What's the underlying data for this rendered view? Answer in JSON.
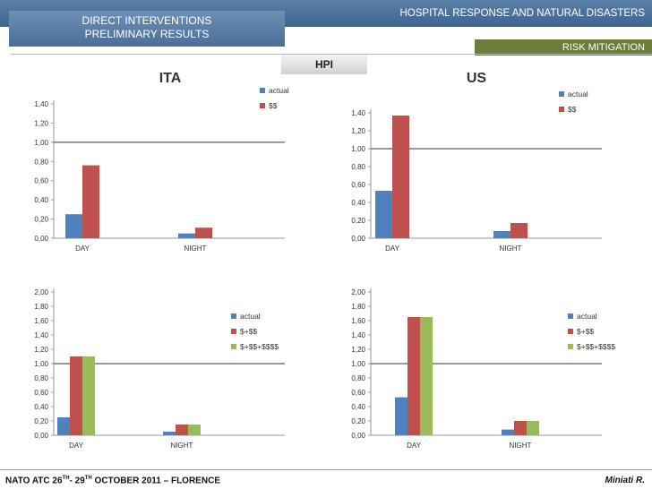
{
  "header": {
    "title": "HOSPITAL RESPONSE AND NATURAL DISASTERS",
    "section_line1": "DIRECT INTERVENTIONS",
    "section_line2": "PRELIMINARY RESULTS",
    "subtitle": "RISK MITIGATION",
    "hpi_label": "HPI"
  },
  "footer": {
    "event_prefix": "NATO ATC  26",
    "sup1": "TH",
    "mid": "- 29",
    "sup2": "TH",
    "event_suffix": " OCTOBER 2011 – FLORENCE",
    "author": "Miniati R."
  },
  "colors": {
    "actual": "#4f81bd",
    "ss": "#c0504d",
    "sss": "#9bbb59"
  },
  "chart_data": [
    {
      "type": "bar",
      "title": "ITA",
      "categories": [
        "DAY",
        "NIGHT"
      ],
      "series": [
        {
          "name": "actual",
          "values": [
            0.25,
            0.05
          ]
        },
        {
          "name": "$$",
          "values": [
            0.76,
            0.11
          ]
        }
      ],
      "ylim": [
        0,
        1.4
      ],
      "yticks": [
        0.0,
        0.2,
        0.4,
        0.6,
        0.8,
        1.0,
        1.2,
        1.4
      ],
      "ytick_labels": [
        "0,00",
        "0,20",
        "0,40",
        "0,60",
        "0,80",
        "1,00",
        "1,20",
        "1,40"
      ],
      "reference_line": 1.0
    },
    {
      "type": "bar",
      "title": "US",
      "categories": [
        "DAY",
        "NIGHT"
      ],
      "series": [
        {
          "name": "actual",
          "values": [
            0.53,
            0.08
          ]
        },
        {
          "name": "$$",
          "values": [
            1.37,
            0.17
          ]
        }
      ],
      "ylim": [
        0,
        1.4
      ],
      "yticks": [
        0.0,
        0.2,
        0.4,
        0.6,
        0.8,
        1.0,
        1.2,
        1.4
      ],
      "ytick_labels": [
        "0,00",
        "0,20",
        "0,40",
        "0,60",
        "0,80",
        "1,00",
        "1,20",
        "1,40"
      ],
      "reference_line": 1.0
    },
    {
      "type": "bar",
      "title": "",
      "categories": [
        "DAY",
        "NIGHT"
      ],
      "series": [
        {
          "name": "actual",
          "values": [
            0.25,
            0.05
          ]
        },
        {
          "name": "$+$$",
          "values": [
            1.1,
            0.15
          ]
        },
        {
          "name": "$+$$+$$$$",
          "values": [
            1.1,
            0.15
          ]
        }
      ],
      "ylim": [
        0,
        2.0
      ],
      "yticks": [
        0.0,
        0.2,
        0.4,
        0.6,
        0.8,
        1.0,
        1.2,
        1.4,
        1.6,
        1.8,
        2.0
      ],
      "ytick_labels": [
        "0,00",
        "0,20",
        "0,40",
        "0,60",
        "0,80",
        "1,00",
        "1,20",
        "1,40",
        "1,60",
        "1,80",
        "2,00"
      ],
      "reference_line": 1.0
    },
    {
      "type": "bar",
      "title": "",
      "categories": [
        "DAY",
        "NIGHT"
      ],
      "series": [
        {
          "name": "actual",
          "values": [
            0.53,
            0.08
          ]
        },
        {
          "name": "$+$$",
          "values": [
            1.65,
            0.2
          ]
        },
        {
          "name": "$+$$+$$$$",
          "values": [
            1.65,
            0.2
          ]
        }
      ],
      "ylim": [
        0,
        2.0
      ],
      "yticks": [
        0.0,
        0.2,
        0.4,
        0.6,
        0.8,
        1.0,
        1.2,
        1.4,
        1.6,
        1.8,
        2.0
      ],
      "ytick_labels": [
        "0,00",
        "0,20",
        "0,40",
        "0,60",
        "0,80",
        "1,00",
        "1,20",
        "1,40",
        "1,60",
        "1,80",
        "2,00"
      ],
      "reference_line": 1.0
    }
  ]
}
